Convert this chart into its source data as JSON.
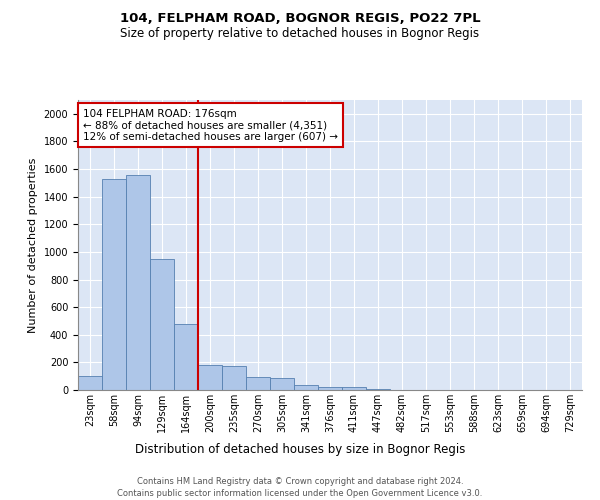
{
  "title1": "104, FELPHAM ROAD, BOGNOR REGIS, PO22 7PL",
  "title2": "Size of property relative to detached houses in Bognor Regis",
  "xlabel": "Distribution of detached houses by size in Bognor Regis",
  "ylabel": "Number of detached properties",
  "categories": [
    "23sqm",
    "58sqm",
    "94sqm",
    "129sqm",
    "164sqm",
    "200sqm",
    "235sqm",
    "270sqm",
    "305sqm",
    "341sqm",
    "376sqm",
    "411sqm",
    "447sqm",
    "482sqm",
    "517sqm",
    "553sqm",
    "588sqm",
    "623sqm",
    "659sqm",
    "694sqm",
    "729sqm"
  ],
  "values": [
    100,
    1530,
    1560,
    950,
    480,
    180,
    175,
    95,
    90,
    35,
    25,
    20,
    5,
    3,
    2,
    1,
    1,
    0,
    0,
    0,
    0
  ],
  "bar_color": "#aec6e8",
  "bar_edge_color": "#5580b0",
  "annotation_text": "104 FELPHAM ROAD: 176sqm\n← 88% of detached houses are smaller (4,351)\n12% of semi-detached houses are larger (607) →",
  "vline_x": 4.5,
  "vline_color": "#cc0000",
  "box_color": "#cc0000",
  "ylim": [
    0,
    2100
  ],
  "yticks": [
    0,
    200,
    400,
    600,
    800,
    1000,
    1200,
    1400,
    1600,
    1800,
    2000
  ],
  "background_color": "#dce6f5",
  "footer1": "Contains HM Land Registry data © Crown copyright and database right 2024.",
  "footer2": "Contains public sector information licensed under the Open Government Licence v3.0.",
  "title1_fontsize": 9.5,
  "title2_fontsize": 8.5,
  "ylabel_fontsize": 8,
  "xlabel_fontsize": 8.5,
  "tick_fontsize": 7,
  "footer_fontsize": 6,
  "annot_fontsize": 7.5
}
